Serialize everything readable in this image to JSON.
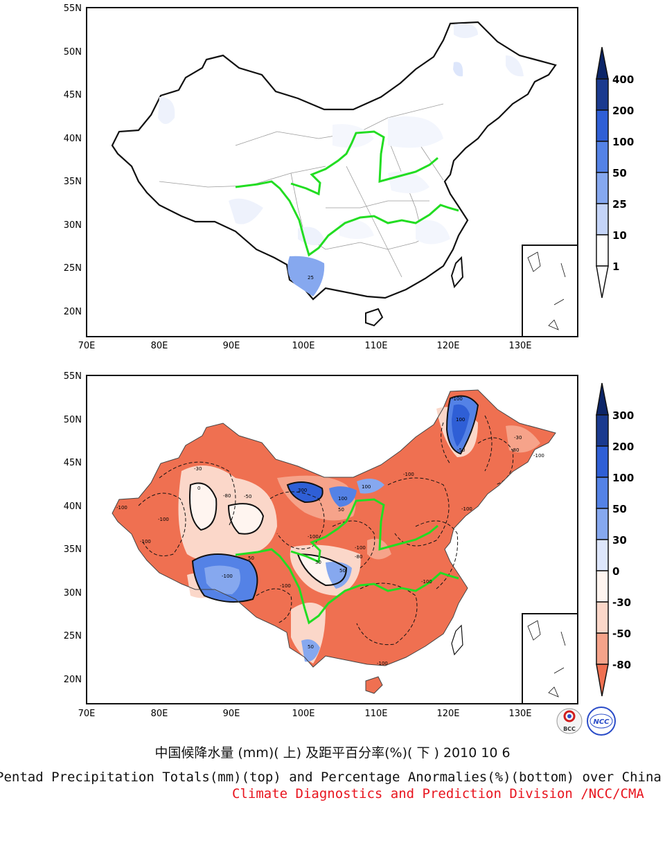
{
  "figure": {
    "caption_cn": "中国候降水量 (mm)( 上) 及距平百分率(%)( 下 ) 2010 10 6",
    "caption_en": "Pentad Precipitation Totals(mm)(top) and Percentage Anormalies(%)(bottom) over China",
    "caption_division": "Climate Diagnostics and Prediction Division /NCC/CMA"
  },
  "logos": {
    "left": "BCC",
    "right": "NCC"
  },
  "axes": {
    "lon_labels": [
      "70E",
      "80E",
      "90E",
      "100E",
      "110E",
      "120E",
      "130E"
    ],
    "lat_labels": [
      "55N",
      "50N",
      "45N",
      "40N",
      "35N",
      "30N",
      "25N",
      "20N"
    ],
    "lon_range": [
      70,
      138
    ],
    "lat_range": [
      17,
      55
    ]
  },
  "colors": {
    "river": "#22dd22",
    "blue_scale": [
      "#ffffff",
      "#dde6fb",
      "#b3c8f6",
      "#86a8ef",
      "#5482e6",
      "#2f5fd6",
      "#193fa6",
      "#0c2568"
    ],
    "red_scale": [
      "#fff5f0",
      "#fbd7c9",
      "#f6a38a",
      "#ef7051"
    ]
  },
  "top_panel": {
    "colorbar": {
      "labels": [
        "400",
        "200",
        "100",
        "50",
        "25",
        "10",
        "1"
      ]
    },
    "annotations": [
      "25"
    ]
  },
  "bottom_panel": {
    "colorbar": {
      "labels": [
        "300",
        "200",
        "100",
        "50",
        "30",
        "0",
        "-30",
        "-50",
        "-80"
      ]
    },
    "annotations": [
      "-100",
      "-100",
      "-80",
      "-50",
      "-30",
      "0",
      "300",
      "100",
      "100",
      "50",
      "-100",
      "-50",
      "-100",
      "-80",
      "-100",
      "100",
      "-100",
      "30",
      "50",
      "-100",
      "50",
      "-100",
      "-100",
      "-100",
      "-30",
      "-80",
      "50",
      "-100",
      "-100",
      "-100"
    ]
  }
}
